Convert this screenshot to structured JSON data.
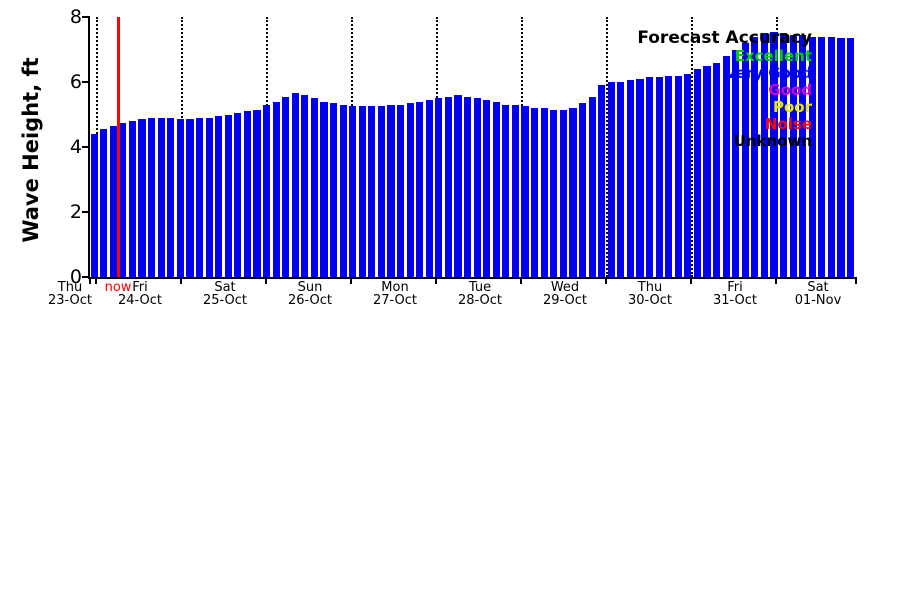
{
  "figure": {
    "background": "#ffffff"
  },
  "y_axis": {
    "title": "Wave Height, ft",
    "tick_labels": [
      "0",
      "2",
      "4",
      "6",
      "8"
    ]
  },
  "x_axis": {
    "now_label": "now",
    "days": [
      {
        "name": "Thu",
        "date": "23-Oct"
      },
      {
        "name": "Fri",
        "date": "24-Oct"
      },
      {
        "name": "Sat",
        "date": "25-Oct"
      },
      {
        "name": "Sun",
        "date": "26-Oct"
      },
      {
        "name": "Mon",
        "date": "27-Oct"
      },
      {
        "name": "Tue",
        "date": "28-Oct"
      },
      {
        "name": "Wed",
        "date": "29-Oct"
      },
      {
        "name": "Thu",
        "date": "30-Oct"
      },
      {
        "name": "Fri",
        "date": "31-Oct"
      },
      {
        "name": "Sat",
        "date": "01-Nov"
      }
    ]
  },
  "legend": {
    "title": "Forecast Accuracy",
    "items": [
      {
        "label": "Excellent",
        "color": "#00cc00"
      },
      {
        "label": "Very Good",
        "color": "#0000ee"
      },
      {
        "label": "Good",
        "color": "#cc00cc"
      },
      {
        "label": "Poor",
        "color": "#e6e600"
      },
      {
        "label": "Noise",
        "color": "#ff0000"
      },
      {
        "label": "Unknown",
        "color": "#000000"
      }
    ]
  },
  "chart_data": {
    "type": "bar",
    "title": "",
    "ylabel": "Wave Height, ft",
    "xlabel": "",
    "units": "ft",
    "ylim": [
      0,
      8
    ],
    "yticks": [
      0,
      2,
      4,
      6,
      8
    ],
    "bar_color": "#0000ee",
    "now_line_color": "#ff0000",
    "grid": "dotted vertical day dividers",
    "legend_position": "upper right, no box, overlays bars",
    "day_labels": [
      "Thu 23-Oct",
      "Fri 24-Oct",
      "Sat 25-Oct",
      "Sun 26-Oct",
      "Mon 27-Oct",
      "Tue 28-Oct",
      "Wed 29-Oct",
      "Thu 30-Oct",
      "Fri 31-Oct",
      "Sat 01-Nov"
    ],
    "interval_hours": 3,
    "values": [
      4.4,
      4.55,
      4.65,
      4.75,
      4.8,
      4.85,
      4.9,
      4.9,
      4.9,
      4.85,
      4.85,
      4.9,
      4.9,
      4.95,
      5.0,
      5.05,
      5.1,
      5.15,
      5.3,
      5.4,
      5.55,
      5.65,
      5.6,
      5.5,
      5.4,
      5.35,
      5.3,
      5.25,
      5.25,
      5.25,
      5.25,
      5.3,
      5.3,
      5.35,
      5.4,
      5.45,
      5.5,
      5.55,
      5.6,
      5.55,
      5.5,
      5.45,
      5.4,
      5.3,
      5.3,
      5.25,
      5.2,
      5.2,
      5.15,
      5.15,
      5.2,
      5.35,
      5.55,
      5.9,
      6.0,
      6.0,
      6.05,
      6.1,
      6.15,
      6.15,
      6.2,
      6.2,
      6.25,
      6.4,
      6.5,
      6.6,
      6.8,
      7.0,
      7.2,
      7.4,
      7.5,
      7.55,
      7.5,
      7.45,
      7.45,
      7.4,
      7.4,
      7.4,
      7.35,
      7.35
    ]
  }
}
